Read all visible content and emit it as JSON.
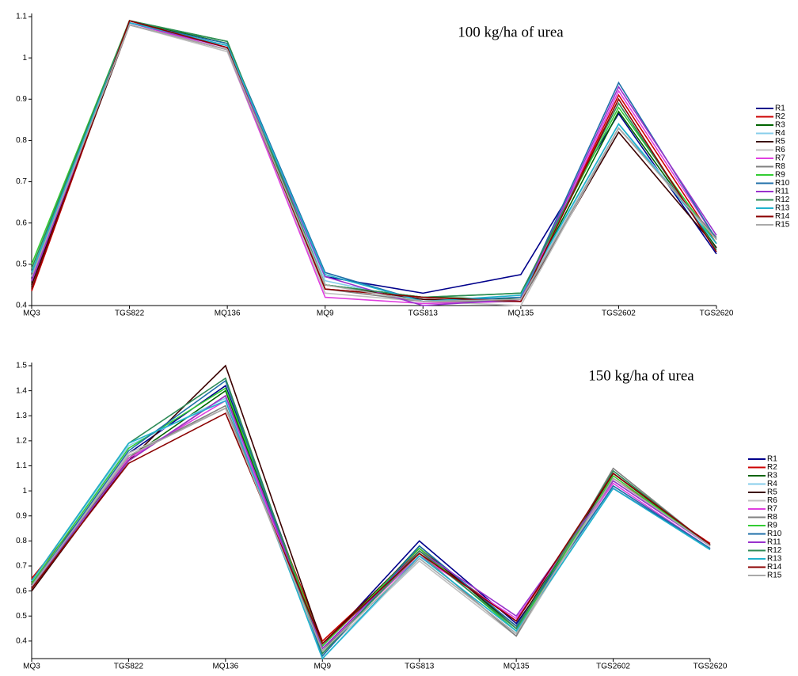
{
  "chart_data": [
    {
      "type": "line",
      "annotation": "100 kg/ha of urea",
      "categories": [
        "MQ3",
        "TGS822",
        "MQ136",
        "MQ9",
        "TGS813",
        "MQ135",
        "TGS2602",
        "TGS2620"
      ],
      "ylim": [
        0.4,
        1.1
      ],
      "yticks": [
        0.4,
        0.5,
        0.6,
        0.7,
        0.8,
        0.9,
        1,
        1.1
      ],
      "series": [
        {
          "name": "R1",
          "color": "#00008b",
          "values": [
            0.46,
            1.085,
            1.03,
            0.47,
            0.43,
            0.475,
            0.865,
            0.525
          ]
        },
        {
          "name": "R2",
          "color": "#cc0000",
          "values": [
            0.435,
            1.09,
            1.025,
            0.44,
            0.42,
            0.41,
            0.91,
            0.55
          ]
        },
        {
          "name": "R3",
          "color": "#006400",
          "values": [
            0.48,
            1.09,
            1.035,
            0.45,
            0.42,
            0.415,
            0.87,
            0.54
          ]
        },
        {
          "name": "R4",
          "color": "#87ceeb",
          "values": [
            0.47,
            1.085,
            1.03,
            0.46,
            0.41,
            0.42,
            0.84,
            0.56
          ]
        },
        {
          "name": "R5",
          "color": "#3b0000",
          "values": [
            0.45,
            1.08,
            1.02,
            0.45,
            0.415,
            0.41,
            0.82,
            0.54
          ]
        },
        {
          "name": "R6",
          "color": "#c0c0c0",
          "values": [
            0.47,
            1.08,
            1.015,
            0.43,
            0.41,
            0.4,
            0.83,
            0.565
          ]
        },
        {
          "name": "R7",
          "color": "#e040e0",
          "values": [
            0.46,
            1.085,
            1.02,
            0.42,
            0.405,
            0.41,
            0.92,
            0.56
          ]
        },
        {
          "name": "R8",
          "color": "#808080",
          "values": [
            0.48,
            1.08,
            1.02,
            0.44,
            0.41,
            0.41,
            0.83,
            0.565
          ]
        },
        {
          "name": "R9",
          "color": "#33cc33",
          "values": [
            0.5,
            1.09,
            1.04,
            0.45,
            0.42,
            0.43,
            0.88,
            0.55
          ]
        },
        {
          "name": "R10",
          "color": "#1f6fa8",
          "values": [
            0.47,
            1.085,
            1.035,
            0.48,
            0.41,
            0.42,
            0.94,
            0.56
          ]
        },
        {
          "name": "R11",
          "color": "#9932cc",
          "values": [
            0.46,
            1.085,
            1.025,
            0.47,
            0.4,
            0.415,
            0.93,
            0.57
          ]
        },
        {
          "name": "R12",
          "color": "#2e8b57",
          "values": [
            0.49,
            1.09,
            1.04,
            0.45,
            0.42,
            0.43,
            0.89,
            0.535
          ]
        },
        {
          "name": "R13",
          "color": "#20b2cc",
          "values": [
            0.48,
            1.085,
            1.03,
            0.475,
            0.41,
            0.425,
            0.84,
            0.55
          ]
        },
        {
          "name": "R14",
          "color": "#8b0000",
          "values": [
            0.44,
            1.09,
            1.025,
            0.44,
            0.42,
            0.41,
            0.9,
            0.53
          ]
        },
        {
          "name": "R15",
          "color": "#a9a9a9",
          "values": [
            0.47,
            1.08,
            1.02,
            0.45,
            0.41,
            0.415,
            0.83,
            0.56
          ]
        }
      ]
    },
    {
      "type": "line",
      "annotation": "150 kg/ha of urea",
      "categories": [
        "MQ3",
        "TGS822",
        "MQ136",
        "MQ9",
        "TGS813",
        "MQ135",
        "TGS2602",
        "TGS2620"
      ],
      "ylim": [
        0.33,
        1.5
      ],
      "yticks": [
        0.4,
        0.5,
        0.6,
        0.7,
        0.8,
        0.9,
        1,
        1.1,
        1.2,
        1.3,
        1.4,
        1.5
      ],
      "series": [
        {
          "name": "R1",
          "color": "#00008b",
          "values": [
            0.62,
            1.15,
            1.42,
            0.38,
            0.8,
            0.47,
            1.01,
            0.77
          ]
        },
        {
          "name": "R2",
          "color": "#cc0000",
          "values": [
            0.65,
            1.12,
            1.38,
            0.4,
            0.76,
            0.48,
            1.05,
            0.79
          ]
        },
        {
          "name": "R3",
          "color": "#006400",
          "values": [
            0.61,
            1.13,
            1.4,
            0.36,
            0.78,
            0.45,
            1.07,
            0.78
          ]
        },
        {
          "name": "R4",
          "color": "#87ceeb",
          "values": [
            0.64,
            1.18,
            1.37,
            0.33,
            0.73,
            0.43,
            1.02,
            0.77
          ]
        },
        {
          "name": "R5",
          "color": "#3b0000",
          "values": [
            0.6,
            1.12,
            1.5,
            0.39,
            0.77,
            0.46,
            1.07,
            0.785
          ]
        },
        {
          "name": "R6",
          "color": "#c0c0c0",
          "values": [
            0.62,
            1.15,
            1.33,
            0.35,
            0.72,
            0.42,
            1.04,
            0.78
          ]
        },
        {
          "name": "R7",
          "color": "#e040e0",
          "values": [
            0.63,
            1.13,
            1.36,
            0.37,
            0.74,
            0.49,
            1.03,
            0.77
          ]
        },
        {
          "name": "R8",
          "color": "#808080",
          "values": [
            0.61,
            1.14,
            1.34,
            0.36,
            0.75,
            0.42,
            1.09,
            0.78
          ]
        },
        {
          "name": "R9",
          "color": "#33cc33",
          "values": [
            0.63,
            1.17,
            1.41,
            0.38,
            0.77,
            0.44,
            1.06,
            0.78
          ]
        },
        {
          "name": "R10",
          "color": "#1f6fa8",
          "values": [
            0.62,
            1.16,
            1.44,
            0.34,
            0.78,
            0.46,
            1.02,
            0.77
          ]
        },
        {
          "name": "R11",
          "color": "#9932cc",
          "values": [
            0.62,
            1.12,
            1.38,
            0.37,
            0.76,
            0.5,
            1.04,
            0.78
          ]
        },
        {
          "name": "R12",
          "color": "#2e8b57",
          "values": [
            0.64,
            1.19,
            1.45,
            0.35,
            0.76,
            0.45,
            1.08,
            0.78
          ]
        },
        {
          "name": "R13",
          "color": "#20b2cc",
          "values": [
            0.64,
            1.19,
            1.36,
            0.33,
            0.74,
            0.44,
            1.01,
            0.765
          ]
        },
        {
          "name": "R14",
          "color": "#8b0000",
          "values": [
            0.61,
            1.11,
            1.31,
            0.39,
            0.75,
            0.48,
            1.07,
            0.785
          ]
        },
        {
          "name": "R15",
          "color": "#a9a9a9",
          "values": [
            0.62,
            1.14,
            1.33,
            0.36,
            0.73,
            0.43,
            1.05,
            0.78
          ]
        }
      ]
    }
  ]
}
